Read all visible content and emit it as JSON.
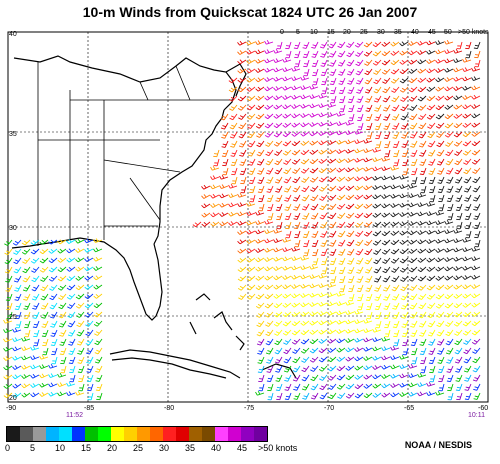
{
  "title": "10-m Winds from Quickscat 1824 UTC  26 Jan 2007",
  "credit": "NOAA / NESDIS",
  "lat_labels": [
    "40",
    "35",
    "30",
    "25",
    "20"
  ],
  "lon_labels": [
    "-90",
    "-85",
    "-80",
    "-75",
    "-70",
    "-65",
    "-60"
  ],
  "pass_times": [
    "11:52",
    "10:11"
  ],
  "inset_speed_labels": [
    "0",
    "5",
    "10",
    "15",
    "20",
    "25",
    "30",
    "35",
    "40",
    "45",
    "50",
    ">50 knots"
  ],
  "colorbar": {
    "colors": [
      "#1a1a1a",
      "#5a5a5a",
      "#9a9a9a",
      "#00b4ff",
      "#00e0ff",
      "#0033ff",
      "#00c000",
      "#00ff00",
      "#ffff00",
      "#ffd000",
      "#ff9900",
      "#ff6600",
      "#ff2020",
      "#e00000",
      "#a06000",
      "#7a4a00",
      "#ff40ff",
      "#d000d0",
      "#9000c0",
      "#7000a0"
    ],
    "labels": [
      "0",
      "5",
      "10",
      "15",
      "20",
      "25",
      "30",
      "35",
      "40",
      "45",
      ">50 knots"
    ]
  }
}
